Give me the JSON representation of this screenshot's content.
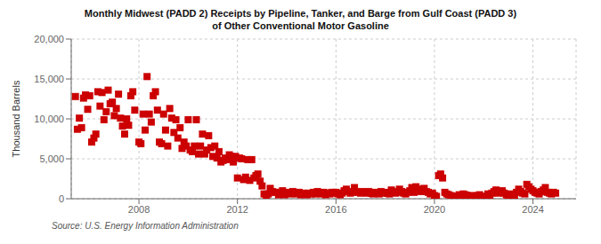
{
  "chart_data": {
    "type": "scatter",
    "title": "Monthly Midwest (PADD 2) Receipts by Pipeline, Tanker, and Barge from Gulf Coast (PADD 3)\nof Other Conventional Motor Gasoline",
    "ylabel": "Thousand Barrels",
    "annotations": [
      "Source: U.S. Energy Information Administration"
    ],
    "color": "#cc0000",
    "marker": "square",
    "grid": true,
    "xlim": [
      2005.25,
      2025.75
    ],
    "xticks": [
      2008,
      2012,
      2016,
      2020,
      2024
    ],
    "ylim": [
      0,
      20000
    ],
    "yticks": [
      0,
      {
        "value": 5000,
        "label": "5,000"
      },
      {
        "value": 10000,
        "label": "10,000"
      },
      {
        "value": 15000,
        "label": "15,000"
      },
      {
        "value": 20000,
        "label": "20,000"
      }
    ],
    "x": [
      2005.42,
      2005.5,
      2005.58,
      2005.67,
      2005.75,
      2005.83,
      2005.92,
      2006.0,
      2006.08,
      2006.17,
      2006.25,
      2006.33,
      2006.42,
      2006.5,
      2006.58,
      2006.67,
      2006.75,
      2006.83,
      2006.92,
      2007.0,
      2007.08,
      2007.17,
      2007.25,
      2007.33,
      2007.42,
      2007.5,
      2007.58,
      2007.67,
      2007.75,
      2007.83,
      2008.0,
      2008.08,
      2008.17,
      2008.25,
      2008.33,
      2008.42,
      2008.5,
      2008.58,
      2008.67,
      2008.75,
      2008.83,
      2008.92,
      2009.0,
      2009.08,
      2009.17,
      2009.25,
      2009.33,
      2009.42,
      2009.5,
      2009.58,
      2009.67,
      2009.75,
      2009.83,
      2009.92,
      2010.0,
      2010.08,
      2010.17,
      2010.25,
      2010.33,
      2010.42,
      2010.5,
      2010.58,
      2010.67,
      2010.75,
      2010.83,
      2010.92,
      2011.0,
      2011.08,
      2011.17,
      2011.25,
      2011.33,
      2011.42,
      2011.5,
      2011.58,
      2011.67,
      2011.75,
      2011.83,
      2011.92,
      2012.0,
      2012.08,
      2012.17,
      2012.25,
      2012.33,
      2012.42,
      2012.5,
      2012.58,
      2012.67,
      2012.75,
      2012.83,
      2012.92,
      2013.0,
      2013.08,
      2013.17,
      2013.25,
      2013.33,
      2013.42,
      2013.5,
      2013.58,
      2013.67,
      2013.75,
      2013.83,
      2013.92,
      2014.0,
      2014.08,
      2014.17,
      2014.25,
      2014.33,
      2014.42,
      2014.5,
      2014.58,
      2014.67,
      2014.75,
      2014.83,
      2014.92,
      2015.0,
      2015.08,
      2015.17,
      2015.25,
      2015.33,
      2015.42,
      2015.5,
      2015.58,
      2015.67,
      2015.75,
      2015.83,
      2015.92,
      2016.0,
      2016.08,
      2016.17,
      2016.25,
      2016.33,
      2016.42,
      2016.5,
      2016.58,
      2016.67,
      2016.75,
      2016.83,
      2016.92,
      2017.0,
      2017.08,
      2017.17,
      2017.25,
      2017.33,
      2017.42,
      2017.5,
      2017.58,
      2017.67,
      2017.75,
      2017.83,
      2017.92,
      2018.0,
      2018.08,
      2018.17,
      2018.25,
      2018.33,
      2018.42,
      2018.5,
      2018.58,
      2018.67,
      2018.75,
      2018.83,
      2018.92,
      2019.0,
      2019.08,
      2019.17,
      2019.25,
      2019.33,
      2019.42,
      2019.5,
      2019.58,
      2019.67,
      2019.75,
      2019.83,
      2019.92,
      2020.0,
      2020.08,
      2020.17,
      2020.25,
      2020.33,
      2020.42,
      2020.5,
      2020.58,
      2020.67,
      2020.75,
      2020.83,
      2020.92,
      2021.0,
      2021.08,
      2021.17,
      2021.25,
      2021.33,
      2021.42,
      2021.5,
      2021.58,
      2021.67,
      2021.75,
      2021.83,
      2021.92,
      2022.0,
      2022.08,
      2022.17,
      2022.25,
      2022.33,
      2022.42,
      2022.5,
      2022.58,
      2022.67,
      2022.75,
      2022.83,
      2022.92,
      2023.0,
      2023.08,
      2023.17,
      2023.25,
      2023.33,
      2023.42,
      2023.5,
      2023.58,
      2023.67,
      2023.75,
      2023.83,
      2023.92,
      2024.0,
      2024.08,
      2024.17,
      2024.25,
      2024.33,
      2024.42,
      2024.5,
      2024.58,
      2024.67,
      2024.75,
      2024.83,
      2024.92
    ],
    "values": [
      12800,
      8700,
      10100,
      8900,
      12600,
      13000,
      11200,
      12900,
      7100,
      7600,
      8100,
      13400,
      11600,
      13300,
      9900,
      10900,
      13600,
      11900,
      12100,
      10400,
      11300,
      13100,
      10100,
      9100,
      8100,
      10000,
      9200,
      12900,
      13400,
      11100,
      7100,
      6900,
      10600,
      8600,
      15300,
      10600,
      9600,
      12900,
      13400,
      11100,
      7100,
      6900,
      10600,
      8600,
      6600,
      11300,
      10100,
      8300,
      9900,
      7600,
      8900,
      6300,
      7100,
      6600,
      9900,
      6100,
      5900,
      6600,
      9900,
      5600,
      6600,
      8100,
      5600,
      6100,
      7900,
      6400,
      5300,
      6600,
      5100,
      5900,
      4600,
      4800,
      5100,
      4900,
      5500,
      5300,
      4600,
      5300,
      2600,
      5100,
      5000,
      2400,
      2700,
      4900,
      2300,
      4900,
      2600,
      2900,
      3100,
      2200,
      1600,
      600,
      400,
      600,
      1300,
      900,
      800,
      800,
      500,
      700,
      1000,
      500,
      700,
      800,
      600,
      900,
      700,
      600,
      800,
      500,
      700,
      600,
      500,
      700,
      600,
      800,
      600,
      900,
      700,
      600,
      800,
      500,
      700,
      600,
      800,
      700,
      800,
      600,
      500,
      700,
      1000,
      1200,
      900,
      700,
      800,
      1400,
      900,
      800,
      700,
      900,
      800,
      700,
      900,
      700,
      600,
      800,
      700,
      600,
      900,
      700,
      800,
      700,
      600,
      1100,
      900,
      700,
      800,
      1200,
      900,
      700,
      600,
      800,
      1000,
      1400,
      800,
      1500,
      1200,
      900,
      1100,
      1300,
      900,
      800,
      600,
      700,
      400,
      300,
      2900,
      3100,
      2600,
      800,
      600,
      500,
      400,
      300,
      200,
      300,
      500,
      400,
      600,
      500,
      400,
      300,
      400,
      200,
      300,
      400,
      500,
      300,
      200,
      300,
      600,
      400,
      700,
      900,
      1100,
      700,
      800,
      1000,
      700,
      500,
      400,
      600,
      500,
      400,
      800,
      1200,
      900,
      700,
      600,
      1800,
      1500,
      1200,
      1000,
      800,
      700,
      600,
      900,
      1100,
      1400,
      800,
      700,
      600,
      800,
      700
    ]
  }
}
